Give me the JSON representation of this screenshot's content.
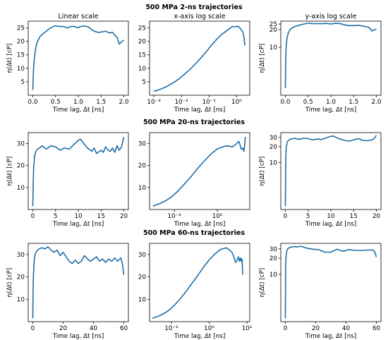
{
  "figure": {
    "row_titles": [
      "500 MPa 2-ns trajectories",
      "500 MPa 20-ns trajectories",
      "500 MPa 60-ns trajectories"
    ],
    "column_titles": [
      "Linear scale",
      "x-axis log scale",
      "y-axis log scale"
    ]
  },
  "colors": {
    "series": "#1f6fa8",
    "axes": "#000000"
  },
  "chart_data": [
    {
      "type": "line",
      "row": 0,
      "col": 0,
      "title": "Linear scale",
      "xlabel": "Time lag, Δt [ns]",
      "ylabel": "η(Δt)  [cP]",
      "xscale": "linear",
      "yscale": "linear",
      "xlim": [
        -0.1,
        2.1
      ],
      "ylim": [
        0,
        27.5
      ],
      "xticks": [
        0.0,
        0.5,
        1.0,
        1.5,
        2.0
      ],
      "xticklabels": [
        "0.0",
        "0.5",
        "1.0",
        "1.5",
        "2.0"
      ],
      "yticks": [
        5,
        10,
        15,
        20,
        25
      ],
      "yticklabels": [
        "5",
        "10",
        "15",
        "20",
        "25"
      ],
      "x": [
        0.0,
        0.01,
        0.02,
        0.04,
        0.06,
        0.08,
        0.1,
        0.15,
        0.2,
        0.25,
        0.3,
        0.35,
        0.4,
        0.45,
        0.5,
        0.55,
        0.6,
        0.65,
        0.7,
        0.75,
        0.8,
        0.85,
        0.9,
        0.95,
        1.0,
        1.05,
        1.1,
        1.15,
        1.2,
        1.25,
        1.3,
        1.35,
        1.4,
        1.45,
        1.5,
        1.55,
        1.6,
        1.65,
        1.7,
        1.75,
        1.8,
        1.85,
        1.9,
        1.95,
        2.0
      ],
      "y": [
        2.0,
        7.0,
        10.5,
        14.5,
        17.0,
        18.7,
        19.8,
        21.5,
        22.5,
        23.2,
        23.8,
        24.5,
        25.0,
        25.5,
        25.8,
        25.6,
        25.5,
        25.6,
        25.4,
        25.0,
        25.3,
        25.5,
        25.6,
        25.3,
        25.1,
        25.5,
        25.7,
        25.6,
        25.5,
        25.0,
        24.2,
        23.8,
        23.5,
        23.3,
        23.5,
        23.6,
        23.8,
        23.4,
        23.1,
        23.4,
        22.3,
        21.5,
        19.0,
        19.8,
        20.5
      ]
    },
    {
      "type": "line",
      "row": 0,
      "col": 1,
      "title": "x-axis log scale",
      "xlabel": "Time lag, Δt [ns]",
      "ylabel": "",
      "xscale": "log",
      "yscale": "linear",
      "xlim": [
        0.0007,
        3.0
      ],
      "ylim": [
        0,
        27.5
      ],
      "xticks": [
        0.001,
        0.01,
        0.1,
        1
      ],
      "xticklabels": [
        "10⁻³",
        "10⁻²",
        "10⁻¹",
        "10⁰"
      ],
      "yticks": [
        5,
        10,
        15,
        20,
        25
      ],
      "yticklabels": [
        "5",
        "10",
        "15",
        "20",
        "25"
      ],
      "x": [
        0.001,
        0.0015,
        0.002,
        0.003,
        0.005,
        0.008,
        0.012,
        0.02,
        0.03,
        0.05,
        0.08,
        0.12,
        0.2,
        0.3,
        0.5,
        0.7,
        0.9,
        1.1,
        1.3,
        1.5,
        1.7,
        1.85,
        2.0
      ],
      "y": [
        1.5,
        2.0,
        2.5,
        3.3,
        4.6,
        6.0,
        7.5,
        9.5,
        11.3,
        13.8,
        16.2,
        18.4,
        21.0,
        22.7,
        24.4,
        25.5,
        25.4,
        25.7,
        25.0,
        24.2,
        23.4,
        21.5,
        18.5
      ]
    },
    {
      "type": "line",
      "row": 0,
      "col": 2,
      "title": "y-axis log scale",
      "xlabel": "Time lag, Δt [ns]",
      "ylabel": "η(Δt)  [cP]",
      "xscale": "linear",
      "yscale": "log",
      "xlim": [
        -0.1,
        2.1
      ],
      "ylim": [
        1.5,
        28
      ],
      "xticks": [
        0.0,
        0.5,
        1.0,
        1.5,
        2.0
      ],
      "xticklabels": [
        "0.0",
        "0.5",
        "1.0",
        "1.5",
        "2.0"
      ],
      "yticks": [
        10,
        20,
        25
      ],
      "yticklabels": [
        "10",
        "20",
        "25"
      ],
      "x": [
        0.0,
        0.01,
        0.02,
        0.04,
        0.06,
        0.08,
        0.1,
        0.15,
        0.2,
        0.25,
        0.3,
        0.4,
        0.5,
        0.6,
        0.7,
        0.8,
        0.9,
        1.0,
        1.1,
        1.2,
        1.3,
        1.4,
        1.5,
        1.6,
        1.7,
        1.8,
        1.85,
        1.9,
        1.95,
        2.0
      ],
      "y": [
        2.0,
        7.0,
        10.5,
        14.5,
        17.0,
        18.7,
        19.8,
        21.5,
        22.5,
        23.2,
        23.8,
        25.0,
        25.8,
        25.5,
        25.4,
        25.3,
        25.6,
        25.1,
        25.7,
        25.5,
        24.2,
        23.5,
        23.5,
        23.8,
        23.1,
        22.3,
        21.5,
        19.0,
        19.8,
        20.5
      ]
    },
    {
      "type": "line",
      "row": 1,
      "col": 0,
      "title": "",
      "xlabel": "Time lag, Δt [ns]",
      "ylabel": "η(Δt)  [cP]",
      "xscale": "linear",
      "yscale": "linear",
      "xlim": [
        -1,
        21
      ],
      "ylim": [
        0,
        35
      ],
      "xticks": [
        0,
        5,
        10,
        15,
        20
      ],
      "xticklabels": [
        "0",
        "5",
        "10",
        "15",
        "20"
      ],
      "yticks": [
        10,
        20,
        30
      ],
      "yticklabels": [
        "10",
        "20",
        "30"
      ],
      "x": [
        0.0,
        0.1,
        0.2,
        0.4,
        0.6,
        1.0,
        1.5,
        2.0,
        3.0,
        4.0,
        5.0,
        6.0,
        7.0,
        8.0,
        9.0,
        9.5,
        10.0,
        10.5,
        11.0,
        12.0,
        13.0,
        13.5,
        14.0,
        15.0,
        15.5,
        16.0,
        16.5,
        17.0,
        17.5,
        18.0,
        18.5,
        19.0,
        19.5,
        20.0
      ],
      "y": [
        1.5,
        12.0,
        19.0,
        24.0,
        26.0,
        27.5,
        28.0,
        29.0,
        27.5,
        29.0,
        28.5,
        27.0,
        28.0,
        27.5,
        29.5,
        30.5,
        31.5,
        32.0,
        30.5,
        28.0,
        26.5,
        28.0,
        25.5,
        27.0,
        26.0,
        28.5,
        27.0,
        26.5,
        28.0,
        26.0,
        29.0,
        27.0,
        28.5,
        33.0
      ]
    },
    {
      "type": "line",
      "row": 1,
      "col": 1,
      "title": "",
      "xlabel": "Time lag, Δt [ns]",
      "ylabel": "",
      "xscale": "log",
      "yscale": "linear",
      "xlim": [
        0.0007,
        32
      ],
      "ylim": [
        0,
        35
      ],
      "xticks": [
        0.01,
        1
      ],
      "xticklabels": [
        "10⁻²",
        "10⁰"
      ],
      "yticks": [
        10,
        20,
        30
      ],
      "yticklabels": [
        "10",
        "20",
        "30"
      ],
      "x": [
        0.001,
        0.002,
        0.004,
        0.008,
        0.015,
        0.03,
        0.06,
        0.12,
        0.25,
        0.5,
        1.0,
        2.0,
        3.0,
        5.0,
        7.0,
        10.0,
        13.0,
        15.0,
        17.0,
        18.5,
        20.0
      ],
      "y": [
        1.5,
        2.6,
        4.0,
        6.0,
        8.5,
        11.7,
        15.0,
        18.7,
        22.2,
        25.2,
        27.6,
        28.7,
        29.0,
        28.5,
        29.5,
        31.0,
        27.5,
        28.0,
        26.5,
        29.0,
        33.0
      ]
    },
    {
      "type": "line",
      "row": 1,
      "col": 2,
      "title": "",
      "xlabel": "Time lag, Δt [ns]",
      "ylabel": "η(Δt)  [cP]",
      "xscale": "linear",
      "yscale": "log",
      "xlim": [
        -1,
        21
      ],
      "ylim": [
        1.3,
        37
      ],
      "xticks": [
        0,
        5,
        10,
        15,
        20
      ],
      "xticklabels": [
        "0",
        "5",
        "10",
        "15",
        "20"
      ],
      "yticks": [
        10,
        20,
        30
      ],
      "yticklabels": [
        "10",
        "20",
        "30"
      ],
      "x": [
        0.0,
        0.1,
        0.2,
        0.4,
        0.6,
        1.0,
        2.0,
        3.0,
        4.0,
        5.0,
        6.0,
        7.0,
        8.0,
        9.0,
        10.0,
        10.5,
        11.0,
        12.0,
        13.0,
        14.0,
        15.0,
        16.0,
        17.0,
        18.0,
        19.0,
        19.5,
        20.0
      ],
      "y": [
        1.5,
        12.0,
        19.0,
        24.0,
        26.0,
        27.5,
        29.0,
        27.5,
        29.0,
        28.5,
        27.0,
        28.0,
        27.5,
        29.5,
        31.5,
        32.0,
        30.5,
        28.0,
        26.5,
        25.5,
        27.0,
        28.5,
        26.5,
        26.0,
        27.0,
        28.5,
        33.0
      ]
    },
    {
      "type": "line",
      "row": 2,
      "col": 0,
      "title": "",
      "xlabel": "Time lag, Δt [ns]",
      "ylabel": "η(Δt)  [cP]",
      "xscale": "linear",
      "yscale": "linear",
      "xlim": [
        -3,
        63
      ],
      "ylim": [
        0,
        35
      ],
      "xticks": [
        0,
        20,
        40,
        60
      ],
      "xticklabels": [
        "0",
        "20",
        "40",
        "60"
      ],
      "yticks": [
        10,
        20,
        30
      ],
      "yticklabels": [
        "10",
        "20",
        "30"
      ],
      "x": [
        0.0,
        0.2,
        0.5,
        1.0,
        1.5,
        2.5,
        4.0,
        6.0,
        8.0,
        10.0,
        12.0,
        14.0,
        16.0,
        18.0,
        20.0,
        22.0,
        24.0,
        26.0,
        28.0,
        30.0,
        32.0,
        34.0,
        36.0,
        38.0,
        40.0,
        42.0,
        44.0,
        46.0,
        48.0,
        50.0,
        52.0,
        54.0,
        56.0,
        58.0,
        59.0,
        60.0
      ],
      "y": [
        1.5,
        14.0,
        22.0,
        27.5,
        30.0,
        31.5,
        32.5,
        33.0,
        32.5,
        33.5,
        32.0,
        31.0,
        32.0,
        29.5,
        31.0,
        29.0,
        27.0,
        26.0,
        27.5,
        26.0,
        27.0,
        29.5,
        28.0,
        27.0,
        28.0,
        29.0,
        27.0,
        28.0,
        26.5,
        28.0,
        27.0,
        28.5,
        27.0,
        28.5,
        26.0,
        21.0
      ]
    },
    {
      "type": "line",
      "row": 2,
      "col": 1,
      "title": "",
      "xlabel": "Time lag, Δt [ns]",
      "ylabel": "",
      "xscale": "log",
      "yscale": "linear",
      "xlim": [
        0.0007,
        140
      ],
      "ylim": [
        0,
        35
      ],
      "xticks": [
        0.01,
        1,
        100
      ],
      "xticklabels": [
        "10⁻²",
        "10⁰",
        "10²"
      ],
      "yticks": [
        10,
        20,
        30
      ],
      "yticklabels": [
        "10",
        "20",
        "30"
      ],
      "x": [
        0.001,
        0.002,
        0.004,
        0.008,
        0.015,
        0.03,
        0.06,
        0.12,
        0.25,
        0.5,
        1.0,
        2.0,
        4.0,
        8.0,
        12.0,
        16.0,
        20.0,
        25.0,
        30.0,
        35.0,
        40.0,
        45.0,
        50.0,
        55.0,
        60.0
      ],
      "y": [
        1.5,
        2.4,
        3.6,
        5.3,
        7.5,
        10.3,
        13.5,
        17.0,
        20.7,
        24.3,
        27.6,
        30.3,
        32.3,
        33.0,
        32.0,
        31.0,
        29.0,
        26.5,
        27.5,
        29.0,
        27.0,
        28.5,
        27.0,
        28.0,
        21.0
      ]
    },
    {
      "type": "line",
      "row": 2,
      "col": 2,
      "title": "",
      "xlabel": "Time lag, Δt [ns]",
      "ylabel": "η(Δt)  [cP]",
      "xscale": "linear",
      "yscale": "log",
      "xlim": [
        -3,
        63
      ],
      "ylim": [
        1.3,
        38
      ],
      "xticks": [
        0,
        20,
        40,
        60
      ],
      "xticklabels": [
        "0",
        "20",
        "40",
        "60"
      ],
      "yticks": [
        10,
        20,
        30
      ],
      "yticklabels": [
        "10",
        "20",
        "30"
      ],
      "x": [
        0.0,
        0.2,
        0.5,
        1.0,
        1.5,
        2.5,
        4.0,
        6.0,
        8.0,
        10.0,
        14.0,
        18.0,
        22.0,
        26.0,
        30.0,
        34.0,
        38.0,
        42.0,
        46.0,
        50.0,
        54.0,
        58.0,
        59.0,
        60.0
      ],
      "y": [
        1.5,
        14.0,
        22.0,
        27.5,
        30.0,
        31.5,
        32.5,
        33.0,
        32.5,
        33.5,
        31.0,
        29.5,
        29.0,
        26.0,
        26.0,
        29.5,
        27.0,
        29.0,
        28.0,
        28.0,
        28.5,
        28.5,
        26.0,
        21.0
      ]
    }
  ]
}
